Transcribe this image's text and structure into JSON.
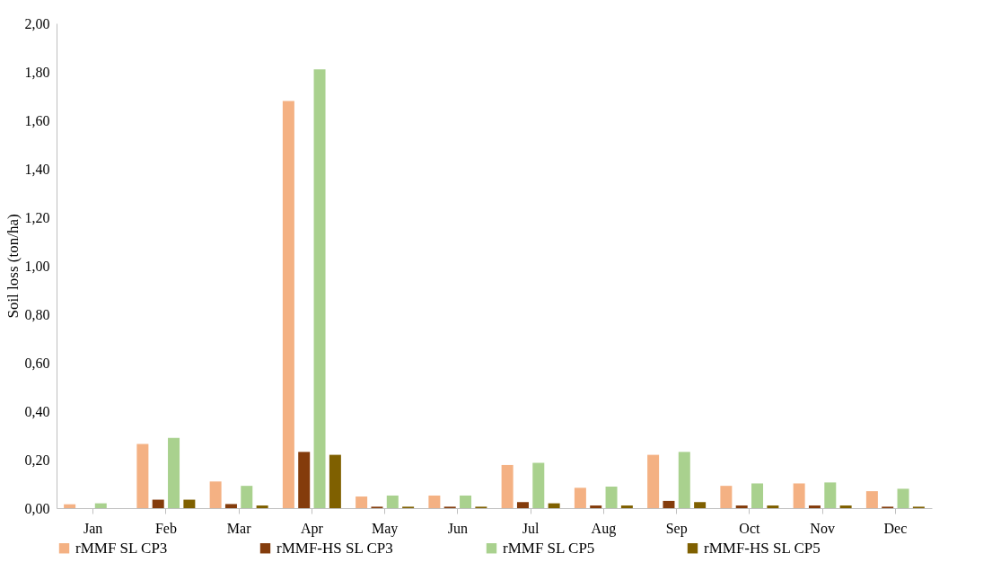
{
  "chart_data": {
    "type": "bar",
    "ylabel": "Soil loss (ton/ha)",
    "categories": [
      "Jan",
      "Feb",
      "Mar",
      "Apr",
      "May",
      "Jun",
      "Jul",
      "Aug",
      "Sep",
      "Oct",
      "Nov",
      "Dec"
    ],
    "series": [
      {
        "name": "rMMF SL CP3",
        "color": "#f4b183",
        "values": [
          0.016,
          0.265,
          0.11,
          1.68,
          0.048,
          0.052,
          0.178,
          0.084,
          0.22,
          0.092,
          0.102,
          0.07
        ]
      },
      {
        "name": "rMMF-HS SL CP3",
        "color": "#843c0c",
        "values": [
          0,
          0.035,
          0.017,
          0.232,
          0.006,
          0.006,
          0.025,
          0.011,
          0.03,
          0.011,
          0.011,
          0.006
        ]
      },
      {
        "name": "rMMF SL CP5",
        "color": "#a9d18e",
        "values": [
          0.02,
          0.29,
          0.092,
          1.81,
          0.052,
          0.052,
          0.187,
          0.089,
          0.232,
          0.102,
          0.106,
          0.08
        ]
      },
      {
        "name": "rMMF-HS SL CP5",
        "color": "#7f6000",
        "values": [
          0,
          0.035,
          0.011,
          0.22,
          0.006,
          0.006,
          0.02,
          0.011,
          0.025,
          0.011,
          0.011,
          0.006
        ]
      }
    ],
    "ylim": [
      0,
      2
    ],
    "yticks": [
      {
        "value": 0,
        "label": "0,00"
      },
      {
        "value": 0.2,
        "label": "0,20"
      },
      {
        "value": 0.4,
        "label": "0,40"
      },
      {
        "value": 0.6,
        "label": "0,60"
      },
      {
        "value": 0.8,
        "label": "0,80"
      },
      {
        "value": 1,
        "label": "1,00"
      },
      {
        "value": 1.2,
        "label": "1,20"
      },
      {
        "value": 1.4,
        "label": "1,40"
      },
      {
        "value": 1.6,
        "label": "1,60"
      },
      {
        "value": 1.8,
        "label": "1,80"
      },
      {
        "value": 2,
        "label": "2,00"
      }
    ],
    "grid": false,
    "legend": "bottom"
  }
}
